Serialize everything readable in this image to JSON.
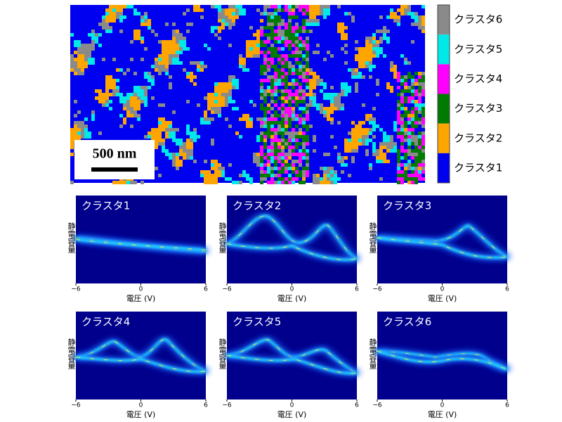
{
  "legend": {
    "items": [
      {
        "label": "クラスタ6",
        "color": "#8a8a8a"
      },
      {
        "label": "クラスタ5",
        "color": "#00e8e8"
      },
      {
        "label": "クラスタ4",
        "color": "#ff00ff"
      },
      {
        "label": "クラスタ3",
        "color": "#007a00"
      },
      {
        "label": "クラスタ2",
        "color": "#ffa500"
      },
      {
        "label": "クラスタ1",
        "color": "#0000f0"
      }
    ]
  },
  "scale_bar": {
    "label": "500 nm"
  },
  "axes": {
    "x_ticks": [
      "−6",
      "0",
      "6"
    ],
    "x_label": "電圧 (V)",
    "y_label": "静電容量"
  },
  "panels": [
    {
      "title": "クラスタ1"
    },
    {
      "title": "クラスタ2"
    },
    {
      "title": "クラスタ3"
    },
    {
      "title": "クラスタ4"
    },
    {
      "title": "クラスタ5"
    },
    {
      "title": "クラスタ6"
    }
  ]
}
